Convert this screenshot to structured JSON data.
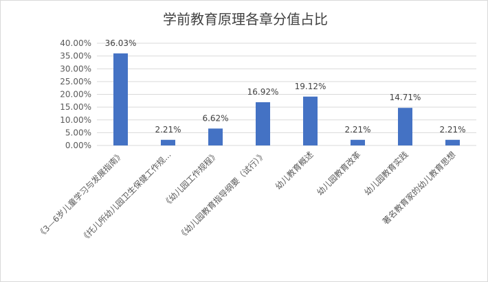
{
  "chart_data": {
    "type": "bar",
    "title": "学前教育原理各章分值占比",
    "categories": [
      "《3—6岁儿童学习与发展指南》",
      "《托儿所幼儿园卫生保健工作规...",
      "《幼儿园工作规程》",
      "《幼儿园教育指导纲要（试行）》",
      "幼儿教育概述",
      "幼儿园教育改革",
      "幼儿园教育实践",
      "著名教育家的幼儿教育思想"
    ],
    "values": [
      36.03,
      2.21,
      6.62,
      16.92,
      19.12,
      2.21,
      14.71,
      2.21
    ],
    "data_labels": [
      "36.03%",
      "2.21%",
      "6.62%",
      "16.92%",
      "19.12%",
      "2.21%",
      "14.71%",
      "2.21%"
    ],
    "y_ticks": [
      "0.00%",
      "5.00%",
      "10.00%",
      "15.00%",
      "20.00%",
      "25.00%",
      "30.00%",
      "35.00%",
      "40.00%"
    ],
    "ylim": [
      0,
      40
    ],
    "ytick_step": 5,
    "grid": true,
    "bar_color": "#4472c4",
    "grid_color": "#d9d9d9"
  }
}
